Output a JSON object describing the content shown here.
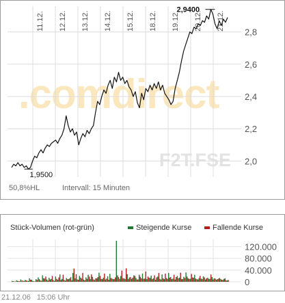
{
  "main": {
    "watermark": ".comdirect",
    "symbol": "F2T.FSE",
    "hl_pct": "50,8",
    "hl_unit": "%HL",
    "interval": "Intervall: 15 Minuten",
    "high_label": "2,9400",
    "low_label": "1,9500",
    "colors": {
      "line": "#111111",
      "grid": "#dddddd",
      "watermark": "#fbe7bd",
      "symbol": "#e6e6e6"
    }
  },
  "chart_data": [
    {
      "type": "line",
      "title": "",
      "x_ticks": [
        "11.12.",
        "12.12.",
        "13.12.",
        "14.12.",
        "15.12.",
        "18.12.",
        "19.12.",
        "20.12.",
        "21.12."
      ],
      "y_ticks": [
        "2,0",
        "2,2",
        "2,4",
        "2,6",
        "2,8"
      ],
      "ylim": [
        1.9,
        2.96
      ],
      "grid": true,
      "high": 2.94,
      "low": 1.95,
      "series": [
        {
          "values": [
            1.96,
            1.98,
            1.97,
            1.99,
            1.97,
            1.98,
            1.96,
            1.97,
            1.95,
            1.96,
            2.0,
            2.03,
            2.02,
            2.05,
            2.07,
            2.05,
            2.08,
            2.1,
            2.09,
            2.11,
            2.12,
            2.13,
            2.11,
            2.14,
            2.16,
            2.2,
            2.28,
            2.22,
            2.18,
            2.2,
            2.16,
            2.18,
            2.1,
            2.14,
            2.17,
            2.15,
            2.19,
            2.17,
            2.2,
            2.22,
            2.3,
            2.37,
            2.35,
            2.4,
            2.44,
            2.42,
            2.47,
            2.5,
            2.45,
            2.52,
            2.49,
            2.55,
            2.5,
            2.52,
            2.48,
            2.5,
            2.46,
            2.44,
            2.4,
            2.43,
            2.36,
            2.33,
            2.42,
            2.38,
            2.45,
            2.43,
            2.47,
            2.44,
            2.48,
            2.45,
            2.49,
            2.44,
            2.47,
            2.42,
            2.4,
            2.38,
            2.35,
            2.37,
            2.45,
            2.5,
            2.55,
            2.62,
            2.68,
            2.72,
            2.76,
            2.8,
            2.79,
            2.83,
            2.82,
            2.85,
            2.84,
            2.87,
            2.86,
            2.9,
            2.88,
            2.94,
            2.91,
            2.85,
            2.82,
            2.87,
            2.84,
            2.88,
            2.86,
            2.89
          ]
        }
      ]
    },
    {
      "type": "bar",
      "title": "Stück-Volumen (rot-grün)",
      "legend": [
        "Steigende Kurse",
        "Fallende Kurse"
      ],
      "y_ticks": [
        "120.000",
        "80.000",
        "40.000",
        "0"
      ],
      "ylim": [
        0,
        140000
      ],
      "series": [
        {
          "name": "Steigende Kurse",
          "color": "#1b7a2e",
          "values": [
            3000,
            1500,
            5000,
            2500,
            8000,
            4000,
            6000,
            3500,
            12000,
            7000,
            2000,
            9000,
            15000,
            5000,
            22000,
            11000,
            8000,
            14000,
            9500,
            6000,
            18000,
            7000,
            25000,
            10000,
            6500,
            13000,
            9000,
            16000,
            30000,
            12000,
            8000,
            20000,
            11000,
            7000,
            15000,
            24000,
            9000,
            17000,
            6000,
            12000,
            31000,
            10000,
            14000,
            8000,
            19000,
            27000,
            11000,
            9000,
            140000,
            16000,
            20000,
            12000,
            9000,
            26000,
            15000,
            10000,
            22000,
            13000,
            8000,
            17000,
            28000,
            11000,
            9000,
            14000,
            21000,
            12000,
            7000,
            18000,
            10000,
            25000,
            9000,
            13000,
            30000,
            16000,
            11000,
            8000,
            20000,
            14000,
            9000,
            17000,
            32000,
            12000,
            10000,
            15000,
            24000,
            9000,
            13000,
            11000,
            19000,
            8000,
            14000,
            10000,
            16000,
            12000,
            7000,
            11000,
            9000,
            6000,
            12000,
            5000
          ]
        },
        {
          "name": "Fallende Kurse",
          "color": "#b21c1c",
          "values": [
            2000,
            1000,
            3000,
            1800,
            4000,
            2200,
            5000,
            2500,
            7000,
            3000,
            1500,
            6000,
            9000,
            3500,
            12000,
            18000,
            4000,
            8000,
            20000,
            3000,
            10000,
            15000,
            6000,
            24000,
            4000,
            9000,
            12000,
            5000,
            45000,
            26000,
            7000,
            14000,
            30000,
            5000,
            10000,
            18000,
            25000,
            8000,
            12000,
            16000,
            20000,
            9000,
            28000,
            11000,
            7000,
            13000,
            9000,
            15000,
            22000,
            10000,
            38000,
            12000,
            46000,
            9000,
            16000,
            14000,
            20000,
            8000,
            24000,
            12000,
            10000,
            35000,
            18000,
            13000,
            9000,
            22000,
            15000,
            30000,
            8000,
            12000,
            28000,
            10000,
            14000,
            9000,
            24000,
            16000,
            12000,
            31000,
            9000,
            13000,
            18000,
            10000,
            27000,
            14000,
            11000,
            8000,
            20000,
            9000,
            15000,
            12000,
            10000,
            25000,
            8000,
            11000,
            9000,
            13000,
            7000,
            10000,
            5000,
            6000
          ]
        }
      ]
    }
  ],
  "footer": {
    "date": "21.12.06",
    "time": "15:06 Uhr"
  }
}
